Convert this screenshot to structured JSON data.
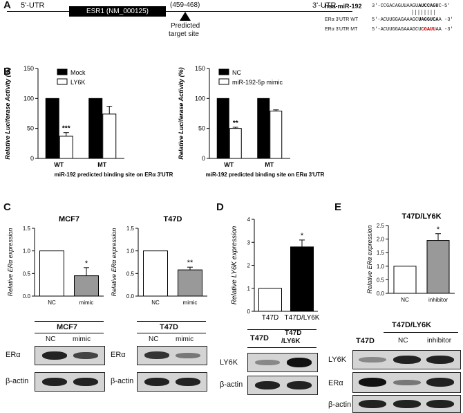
{
  "panels": {
    "A": "A",
    "B": "B",
    "C": "C",
    "D": "D",
    "E": "E"
  },
  "panelA": {
    "utr5": "5'-UTR",
    "utr3": "3'-UTR",
    "gene": "ESR1 (NM_000125)",
    "range": "(459-468)",
    "target_l1": "Predicted",
    "target_l2": "target site",
    "mirna_label": "hsa-miR-192",
    "mirna_seq": "3'-CCGACAGUUAAGUAUCCAGUC-5'",
    "wt_label": "ERα 3'UTR WT",
    "wt_seq": "5'-ACUUGGAGAAAGCUAGGUCAA -3'",
    "mt_label": "ERα 3'UTR MT",
    "mt_seq": "5'-ACUUGGAGAAAGCUCGAUUAA -3'"
  },
  "panelB": {
    "ylabel": "Relative Luciferase Activity (%)",
    "xlabel": "miR-192 predicted binding site on ERα 3'UTR",
    "yticks": [
      "0",
      "50",
      "100",
      "150"
    ],
    "left_legend": [
      "Mock",
      "LY6K"
    ],
    "right_legend": [
      "NC",
      "miR-192-5p mimic"
    ],
    "categories": [
      "WT",
      "MT"
    ],
    "left_sig": "***",
    "right_sig": "**"
  },
  "panelC": {
    "mcf7_title": "MCF7",
    "t47d_title": "T47D",
    "ylabel": "Relative ERα expression",
    "yticks": [
      "0.0",
      "0.5",
      "1.0",
      "1.5"
    ],
    "categories": [
      "NC",
      "mimic"
    ],
    "mcf7_sig": "*",
    "t47d_sig": "**",
    "blot_mcf7": "MCF7",
    "blot_t47d": "T47D",
    "blot_lanes": [
      "NC",
      "mimic"
    ],
    "row_labels": [
      "ERα",
      "β-actin"
    ]
  },
  "panelD": {
    "ylabel": "Relative LY6K expression",
    "yticks": [
      "0",
      "1",
      "2",
      "3",
      "4"
    ],
    "categories": [
      "T47D",
      "T47D/LY6K"
    ],
    "sig": "*",
    "blot_lane1": "T47D",
    "blot_lane2_l1": "T47D",
    "blot_lane2_l2": "/LY6K",
    "row_labels": [
      "LY6K",
      "β-actin"
    ]
  },
  "panelE": {
    "title": "T47D/LY6K",
    "ylabel": "Relative ERα expression",
    "yticks": [
      "0.0",
      "0.5",
      "1.0",
      "1.5",
      "2.0",
      "2.5"
    ],
    "categories": [
      "NC",
      "inhibitor"
    ],
    "sig": "*",
    "blot_group": "T47D/LY6K",
    "blot_lanes": [
      "T47D",
      "NC",
      "inhibitor"
    ],
    "row_labels": [
      "LY6K",
      "ERα",
      "β-actin"
    ]
  },
  "colors": {
    "black": "#000000",
    "white": "#ffffff",
    "gray": "#999999",
    "mutation": "#cc0000"
  },
  "chart_data": [
    {
      "type": "bar",
      "panel": "B-left",
      "ylabel": "Relative Luciferase Activity (%)",
      "xlabel": "miR-192 predicted binding site on ERα 3'UTR",
      "categories": [
        "WT",
        "MT"
      ],
      "ylim": [
        0,
        150
      ],
      "series": [
        {
          "name": "Mock",
          "values": [
            100,
            100
          ],
          "errors": [
            0,
            0
          ]
        },
        {
          "name": "LY6K",
          "values": [
            37,
            74
          ],
          "errors": [
            6,
            13
          ]
        }
      ]
    },
    {
      "type": "bar",
      "panel": "B-right",
      "ylabel": "Relative Luciferase Activity (%)",
      "xlabel": "miR-192 predicted binding site on ERα 3'UTR",
      "categories": [
        "WT",
        "MT"
      ],
      "ylim": [
        0,
        150
      ],
      "series": [
        {
          "name": "NC",
          "values": [
            100,
            100
          ],
          "errors": [
            0,
            0
          ]
        },
        {
          "name": "miR-192-5p mimic",
          "values": [
            50,
            79
          ],
          "errors": [
            2,
            2
          ]
        }
      ]
    },
    {
      "type": "bar",
      "panel": "C-MCF7",
      "title": "MCF7",
      "ylabel": "Relative ERα expression",
      "categories": [
        "NC",
        "mimic"
      ],
      "values": [
        1.0,
        0.45
      ],
      "errors": [
        0,
        0.18
      ],
      "ylim": [
        0,
        1.5
      ]
    },
    {
      "type": "bar",
      "panel": "C-T47D",
      "title": "T47D",
      "ylabel": "Relative ERα expression",
      "categories": [
        "NC",
        "mimic"
      ],
      "values": [
        1.0,
        0.58
      ],
      "errors": [
        0,
        0.06
      ],
      "ylim": [
        0,
        1.5
      ]
    },
    {
      "type": "bar",
      "panel": "D",
      "ylabel": "Relative LY6K expression",
      "categories": [
        "T47D",
        "T47D/LY6K"
      ],
      "values": [
        1.0,
        2.8
      ],
      "errors": [
        0,
        0.3
      ],
      "ylim": [
        0,
        4
      ]
    },
    {
      "type": "bar",
      "panel": "E",
      "title": "T47D/LY6K",
      "ylabel": "Relative ERα expression",
      "categories": [
        "NC",
        "inhibitor"
      ],
      "values": [
        1.0,
        1.95
      ],
      "errors": [
        0,
        0.25
      ],
      "ylim": [
        0,
        2.5
      ]
    }
  ]
}
